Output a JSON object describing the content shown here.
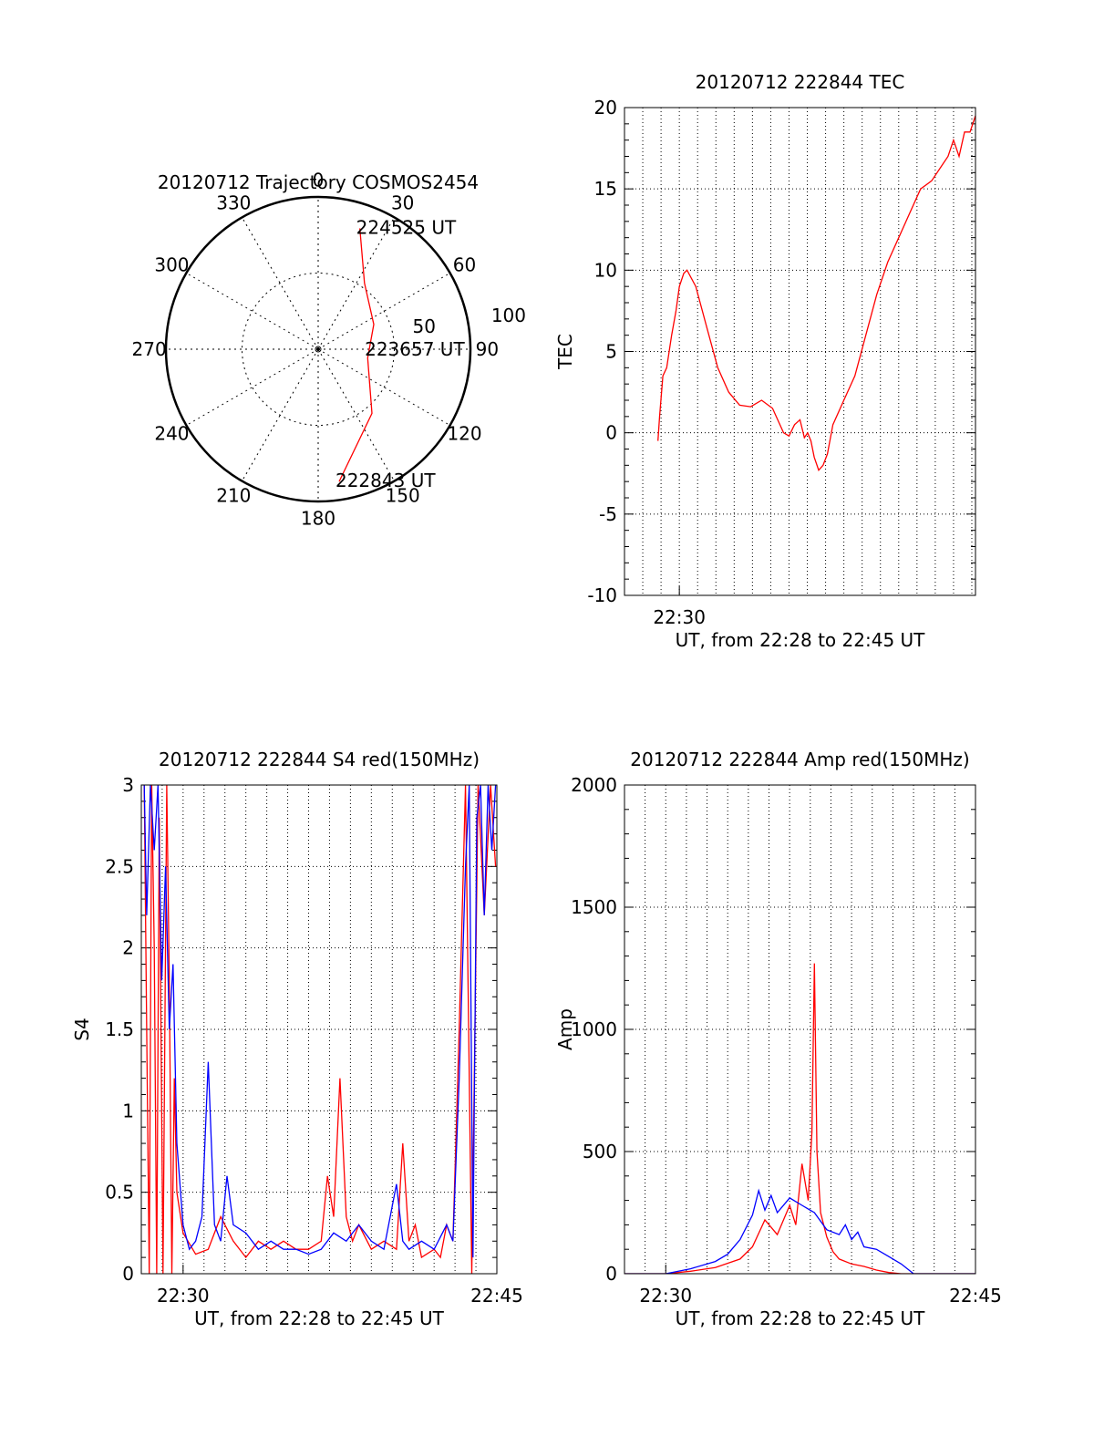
{
  "chart_data": [
    {
      "id": "trajectory",
      "type": "polar",
      "title": "20120712 Trajectory COSMOS2454",
      "angle_ticks": [
        "0",
        "30",
        "60",
        "90",
        "120",
        "150",
        "180",
        "210",
        "240",
        "270",
        "300",
        "330"
      ],
      "radial_ticks": [
        "50",
        "100"
      ],
      "series": [
        {
          "color": "#ff0000",
          "points": [
            {
              "az": 171,
              "r": 88
            },
            {
              "az": 140,
              "r": 55
            },
            {
              "az": 100,
              "r": 33
            },
            {
              "az": 66,
              "r": 40
            },
            {
              "az": 35,
              "r": 53
            },
            {
              "az": 19,
              "r": 84
            }
          ]
        }
      ],
      "annotations": [
        {
          "text": "224525 UT",
          "az": 19,
          "r": 84
        },
        {
          "text": "223657 UT",
          "az": 91,
          "r": 33
        },
        {
          "text": "222843 UT",
          "az": 171,
          "r": 88
        }
      ]
    },
    {
      "id": "tec",
      "type": "line",
      "title": "20120712 222844 TEC",
      "ylabel": "TEC",
      "xlabel": "UT, from 22:28 to 22:45 UT",
      "xlim": [
        22.45,
        22.77
      ],
      "ylim": [
        -10,
        20
      ],
      "yticks": [
        -10,
        -5,
        0,
        5,
        10,
        15,
        20
      ],
      "xticks": [
        {
          "value": 22.5,
          "label": "22:30"
        }
      ],
      "grid": true,
      "series": [
        {
          "color": "#ff0000",
          "x": [
            22.4805,
            22.482,
            22.485,
            22.4885,
            22.493,
            22.497,
            22.5,
            22.504,
            22.507,
            22.515,
            22.525,
            22.535,
            22.545,
            22.555,
            22.565,
            22.575,
            22.585,
            22.595,
            22.6,
            22.605,
            22.61,
            22.614,
            22.617,
            22.62,
            22.623,
            22.627,
            22.631,
            22.635,
            22.64,
            22.65,
            22.66,
            22.67,
            22.68,
            22.69,
            22.7,
            22.71,
            22.72,
            22.73,
            22.74,
            22.745,
            22.75,
            22.755,
            22.76,
            22.765,
            22.77
          ],
          "y": [
            -0.5,
            1,
            3.5,
            4,
            6,
            7.5,
            9,
            9.8,
            10,
            9,
            6.5,
            4,
            2.5,
            1.7,
            1.6,
            2,
            1.5,
            0,
            -0.2,
            0.5,
            0.8,
            -0.3,
            0,
            -0.5,
            -1.5,
            -2.3,
            -2,
            -1.3,
            0.5,
            2,
            3.5,
            6,
            8.5,
            10.5,
            12,
            13.5,
            15,
            15.5,
            16.5,
            17,
            18,
            17,
            18.5,
            18.5,
            19.5
          ]
        }
      ]
    },
    {
      "id": "s4",
      "type": "line",
      "title": "20120712 222844 S4 red(150MHz)",
      "ylabel": "S4",
      "xlabel": "UT, from 22:28 to 22:45 UT",
      "xlim": [
        22.4667,
        22.75
      ],
      "ylim": [
        0,
        3
      ],
      "yticks": [
        0,
        0.5,
        1,
        1.5,
        2,
        2.5,
        3
      ],
      "ytick_labels": [
        "0",
        "0.5",
        "1",
        "1.5",
        "2",
        "2.5",
        "3"
      ],
      "xticks": [
        {
          "value": 22.5,
          "label": "22:30"
        },
        {
          "value": 22.75,
          "label": "22:45"
        }
      ],
      "grid": true,
      "series": [
        {
          "color": "#ff0000",
          "x": [
            22.469,
            22.471,
            22.473,
            22.475,
            22.477,
            22.479,
            22.481,
            22.484,
            22.487,
            22.489,
            22.491,
            22.493,
            22.495,
            22.5,
            22.51,
            22.52,
            22.53,
            22.54,
            22.55,
            22.56,
            22.57,
            22.58,
            22.59,
            22.6,
            22.61,
            22.615,
            22.62,
            22.625,
            22.63,
            22.635,
            22.64,
            22.65,
            22.66,
            22.67,
            22.675,
            22.68,
            22.685,
            22.69,
            22.7,
            22.705,
            22.71,
            22.715,
            22.72,
            22.725,
            22.73,
            22.735,
            22.74,
            22.745,
            22.749
          ],
          "y": [
            3,
            1.5,
            0,
            3,
            2.0,
            0,
            2.8,
            0,
            3,
            1.8,
            0,
            1.2,
            0.5,
            0.25,
            0.12,
            0.15,
            0.35,
            0.2,
            0.1,
            0.2,
            0.15,
            0.2,
            0.15,
            0.15,
            0.2,
            0.6,
            0.35,
            1.2,
            0.35,
            0.2,
            0.3,
            0.15,
            0.2,
            0.15,
            0.8,
            0.2,
            0.3,
            0.1,
            0.15,
            0.1,
            0.3,
            0.2,
            1.5,
            3,
            0,
            3,
            2.2,
            3,
            2.5
          ]
        },
        {
          "color": "#0000ff",
          "x": [
            22.469,
            22.471,
            22.474,
            22.477,
            22.48,
            22.483,
            22.486,
            22.489,
            22.492,
            22.495,
            22.5,
            22.505,
            22.51,
            22.515,
            22.52,
            22.525,
            22.53,
            22.535,
            22.54,
            22.55,
            22.56,
            22.57,
            22.58,
            22.59,
            22.6,
            22.61,
            22.62,
            22.63,
            22.64,
            22.65,
            22.66,
            22.67,
            22.675,
            22.68,
            22.69,
            22.7,
            22.71,
            22.715,
            22.72,
            22.725,
            22.728,
            22.731,
            22.734,
            22.737,
            22.74,
            22.743,
            22.746,
            22.749
          ],
          "y": [
            3,
            2.2,
            3,
            2.6,
            3,
            1.8,
            2.5,
            1.5,
            1.9,
            0.8,
            0.3,
            0.15,
            0.2,
            0.35,
            1.3,
            0.3,
            0.2,
            0.6,
            0.3,
            0.25,
            0.15,
            0.2,
            0.15,
            0.15,
            0.12,
            0.15,
            0.25,
            0.2,
            0.3,
            0.2,
            0.15,
            0.55,
            0.2,
            0.15,
            0.2,
            0.15,
            0.3,
            0.2,
            1.2,
            2.5,
            3,
            0.1,
            2.8,
            3,
            2.2,
            3,
            2.6,
            3
          ]
        }
      ]
    },
    {
      "id": "amp",
      "type": "line",
      "title": "20120712 222844 Amp red(150MHz)",
      "ylabel": "Amp",
      "xlabel": "UT, from 22:28 to 22:45 UT",
      "xlim": [
        22.4667,
        22.75
      ],
      "ylim": [
        0,
        2000
      ],
      "yticks": [
        0,
        500,
        1000,
        1500,
        2000
      ],
      "xticks": [
        {
          "value": 22.5,
          "label": "22:30"
        },
        {
          "value": 22.75,
          "label": "22:45"
        }
      ],
      "grid": true,
      "series": [
        {
          "color": "#ff0000",
          "x": [
            22.4667,
            22.5,
            22.52,
            22.54,
            22.56,
            22.57,
            22.58,
            22.59,
            22.6,
            22.605,
            22.61,
            22.615,
            22.618,
            22.62,
            22.622,
            22.625,
            22.63,
            22.635,
            22.64,
            22.65,
            22.66,
            22.67,
            22.68,
            22.69,
            22.7,
            22.75
          ],
          "y": [
            0,
            0,
            10,
            25,
            60,
            110,
            220,
            160,
            280,
            200,
            450,
            300,
            580,
            1270,
            500,
            250,
            150,
            90,
            60,
            40,
            30,
            15,
            5,
            0,
            0,
            0
          ]
        },
        {
          "color": "#0000ff",
          "x": [
            22.4667,
            22.5,
            22.52,
            22.54,
            22.55,
            22.56,
            22.57,
            22.575,
            22.58,
            22.585,
            22.59,
            22.6,
            22.61,
            22.62,
            22.63,
            22.64,
            22.645,
            22.65,
            22.655,
            22.66,
            22.67,
            22.68,
            22.69,
            22.7,
            22.75
          ],
          "y": [
            0,
            0,
            20,
            50,
            80,
            140,
            240,
            340,
            260,
            320,
            250,
            310,
            280,
            250,
            180,
            160,
            200,
            140,
            170,
            110,
            100,
            70,
            40,
            0,
            0
          ]
        }
      ]
    }
  ]
}
